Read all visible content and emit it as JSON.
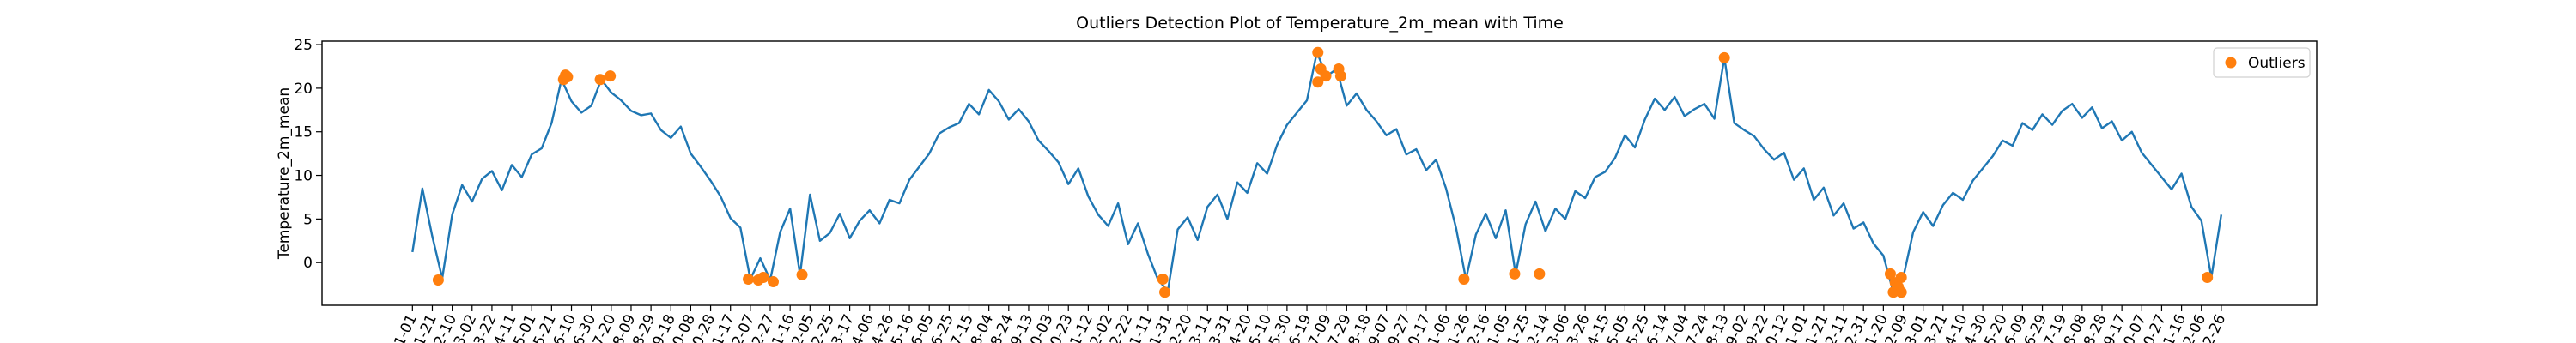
{
  "chart_data": {
    "type": "line",
    "title": "Outliers Detection Plot of Temperature_2m_mean with Time",
    "y_label": "Temperature_2m_mean",
    "xlim": [
      -91,
      1916
    ],
    "ylim": [
      -4.9,
      25.4
    ],
    "yticks": [
      0,
      5,
      10,
      15,
      20,
      25
    ],
    "legend": "upper right",
    "xticks": [
      {
        "value": 0,
        "label": "01-01"
      },
      {
        "value": 20,
        "label": "01-21"
      },
      {
        "value": 40,
        "label": "02-10"
      },
      {
        "value": 60,
        "label": "03-02"
      },
      {
        "value": 80,
        "label": "03-22"
      },
      {
        "value": 100,
        "label": "04-11"
      },
      {
        "value": 120,
        "label": "05-01"
      },
      {
        "value": 140,
        "label": "05-21"
      },
      {
        "value": 160,
        "label": "06-10"
      },
      {
        "value": 180,
        "label": "06-30"
      },
      {
        "value": 200,
        "label": "07-20"
      },
      {
        "value": 220,
        "label": "08-09"
      },
      {
        "value": 240,
        "label": "08-29"
      },
      {
        "value": 260,
        "label": "09-18"
      },
      {
        "value": 280,
        "label": "10-08"
      },
      {
        "value": 300,
        "label": "10-28"
      },
      {
        "value": 320,
        "label": "11-17"
      },
      {
        "value": 340,
        "label": "12-07"
      },
      {
        "value": 360,
        "label": "12-27"
      },
      {
        "value": 380,
        "label": "01-16"
      },
      {
        "value": 400,
        "label": "02-05"
      },
      {
        "value": 420,
        "label": "02-25"
      },
      {
        "value": 440,
        "label": "03-17"
      },
      {
        "value": 460,
        "label": "04-06"
      },
      {
        "value": 480,
        "label": "04-26"
      },
      {
        "value": 500,
        "label": "05-16"
      },
      {
        "value": 520,
        "label": "06-05"
      },
      {
        "value": 540,
        "label": "06-25"
      },
      {
        "value": 560,
        "label": "07-15"
      },
      {
        "value": 580,
        "label": "08-04"
      },
      {
        "value": 600,
        "label": "08-24"
      },
      {
        "value": 620,
        "label": "09-13"
      },
      {
        "value": 640,
        "label": "10-03"
      },
      {
        "value": 660,
        "label": "10-23"
      },
      {
        "value": 680,
        "label": "11-12"
      },
      {
        "value": 700,
        "label": "12-02"
      },
      {
        "value": 720,
        "label": "12-22"
      },
      {
        "value": 740,
        "label": "01-11"
      },
      {
        "value": 760,
        "label": "01-31"
      },
      {
        "value": 780,
        "label": "02-20"
      },
      {
        "value": 800,
        "label": "03-11"
      },
      {
        "value": 820,
        "label": "03-31"
      },
      {
        "value": 840,
        "label": "04-20"
      },
      {
        "value": 860,
        "label": "05-10"
      },
      {
        "value": 880,
        "label": "05-30"
      },
      {
        "value": 900,
        "label": "06-19"
      },
      {
        "value": 920,
        "label": "07-09"
      },
      {
        "value": 940,
        "label": "07-29"
      },
      {
        "value": 960,
        "label": "08-18"
      },
      {
        "value": 980,
        "label": "09-07"
      },
      {
        "value": 1000,
        "label": "09-27"
      },
      {
        "value": 1020,
        "label": "10-17"
      },
      {
        "value": 1040,
        "label": "11-06"
      },
      {
        "value": 1060,
        "label": "11-26"
      },
      {
        "value": 1080,
        "label": "12-16"
      },
      {
        "value": 1100,
        "label": "01-05"
      },
      {
        "value": 1120,
        "label": "01-25"
      },
      {
        "value": 1140,
        "label": "02-14"
      },
      {
        "value": 1160,
        "label": "03-06"
      },
      {
        "value": 1180,
        "label": "03-26"
      },
      {
        "value": 1200,
        "label": "04-15"
      },
      {
        "value": 1220,
        "label": "05-05"
      },
      {
        "value": 1240,
        "label": "05-25"
      },
      {
        "value": 1260,
        "label": "06-14"
      },
      {
        "value": 1280,
        "label": "07-04"
      },
      {
        "value": 1300,
        "label": "07-24"
      },
      {
        "value": 1320,
        "label": "08-13"
      },
      {
        "value": 1340,
        "label": "09-02"
      },
      {
        "value": 1360,
        "label": "09-22"
      },
      {
        "value": 1380,
        "label": "10-12"
      },
      {
        "value": 1400,
        "label": "11-01"
      },
      {
        "value": 1420,
        "label": "11-21"
      },
      {
        "value": 1440,
        "label": "12-11"
      },
      {
        "value": 1460,
        "label": "12-31"
      },
      {
        "value": 1480,
        "label": "01-20"
      },
      {
        "value": 1500,
        "label": "02-09"
      },
      {
        "value": 1520,
        "label": "03-01"
      },
      {
        "value": 1540,
        "label": "03-21"
      },
      {
        "value": 1560,
        "label": "04-10"
      },
      {
        "value": 1580,
        "label": "04-30"
      },
      {
        "value": 1600,
        "label": "05-20"
      },
      {
        "value": 1620,
        "label": "06-09"
      },
      {
        "value": 1640,
        "label": "06-29"
      },
      {
        "value": 1660,
        "label": "07-19"
      },
      {
        "value": 1680,
        "label": "08-08"
      },
      {
        "value": 1700,
        "label": "08-28"
      },
      {
        "value": 1720,
        "label": "09-17"
      },
      {
        "value": 1740,
        "label": "10-07"
      },
      {
        "value": 1760,
        "label": "10-27"
      },
      {
        "value": 1780,
        "label": "11-16"
      },
      {
        "value": 1800,
        "label": "12-06"
      },
      {
        "value": 1820,
        "label": "12-26"
      }
    ],
    "series": [
      {
        "type": "line",
        "color": "#1f77b4",
        "x": [
          0,
          10,
          20,
          30,
          40,
          50,
          60,
          70,
          80,
          90,
          100,
          110,
          120,
          130,
          140,
          150,
          160,
          170,
          180,
          190,
          200,
          210,
          220,
          230,
          240,
          250,
          260,
          270,
          280,
          290,
          300,
          310,
          320,
          330,
          340,
          350,
          360,
          370,
          380,
          390,
          400,
          410,
          420,
          430,
          440,
          450,
          460,
          470,
          480,
          490,
          500,
          510,
          520,
          530,
          540,
          550,
          560,
          570,
          580,
          590,
          600,
          610,
          620,
          630,
          640,
          650,
          660,
          670,
          680,
          690,
          700,
          710,
          720,
          730,
          740,
          750,
          760,
          770,
          780,
          790,
          800,
          810,
          820,
          830,
          840,
          850,
          860,
          870,
          880,
          890,
          900,
          910,
          920,
          930,
          940,
          950,
          960,
          970,
          980,
          990,
          1000,
          1010,
          1020,
          1030,
          1040,
          1050,
          1060,
          1070,
          1080,
          1090,
          1100,
          1110,
          1120,
          1130,
          1140,
          1150,
          1160,
          1170,
          1180,
          1190,
          1200,
          1210,
          1220,
          1230,
          1240,
          1250,
          1260,
          1270,
          1280,
          1290,
          1300,
          1310,
          1320,
          1330,
          1340,
          1350,
          1360,
          1370,
          1380,
          1390,
          1400,
          1410,
          1420,
          1430,
          1440,
          1450,
          1460,
          1470,
          1480,
          1490,
          1500,
          1510,
          1520,
          1530,
          1540,
          1550,
          1560,
          1570,
          1580,
          1590,
          1600,
          1610,
          1620,
          1630,
          1640,
          1650,
          1660,
          1670,
          1680,
          1690,
          1700,
          1710,
          1720,
          1730,
          1740,
          1750,
          1760,
          1770,
          1780,
          1790,
          1800,
          1810,
          1820
        ],
        "values": [
          1.2,
          8.5,
          3.0,
          -1.8,
          5.5,
          8.9,
          7.0,
          9.6,
          10.5,
          8.3,
          11.2,
          9.8,
          12.4,
          13.1,
          16.0,
          21.0,
          18.5,
          17.2,
          18.0,
          21.0,
          19.5,
          18.6,
          17.4,
          16.9,
          17.1,
          15.2,
          14.3,
          15.6,
          12.5,
          11.0,
          9.4,
          7.6,
          5.1,
          4.0,
          -1.9,
          0.5,
          -2.0,
          3.5,
          6.2,
          -1.4,
          7.8,
          2.5,
          3.4,
          5.6,
          2.8,
          4.8,
          6.0,
          4.5,
          7.2,
          6.8,
          9.5,
          11.0,
          12.5,
          14.8,
          15.5,
          16.0,
          18.2,
          17.0,
          19.8,
          18.5,
          16.4,
          17.6,
          16.2,
          14.0,
          12.8,
          11.5,
          9.0,
          10.8,
          7.6,
          5.5,
          4.2,
          6.8,
          2.1,
          4.5,
          1.0,
          -1.9,
          -3.3,
          3.8,
          5.2,
          2.6,
          6.4,
          7.8,
          5.0,
          9.2,
          8.0,
          11.4,
          10.2,
          13.5,
          15.8,
          17.2,
          18.6,
          24.1,
          21.4,
          22.2,
          18.0,
          19.4,
          17.5,
          16.2,
          14.6,
          15.3,
          12.4,
          13.0,
          10.6,
          11.8,
          8.5,
          4.0,
          -1.9,
          3.2,
          5.6,
          2.8,
          6.0,
          -1.3,
          4.4,
          7.0,
          3.6,
          6.2,
          5.0,
          8.2,
          7.4,
          9.8,
          10.4,
          12.0,
          14.6,
          13.2,
          16.4,
          18.8,
          17.5,
          19.0,
          16.8,
          17.6,
          18.2,
          16.5,
          23.5,
          16.0,
          15.2,
          14.5,
          13.0,
          11.8,
          12.6,
          9.5,
          10.8,
          7.2,
          8.6,
          5.4,
          6.8,
          3.9,
          4.6,
          2.2,
          0.8,
          -3.4,
          -1.7,
          3.5,
          5.8,
          4.2,
          6.6,
          8.0,
          7.2,
          9.4,
          10.8,
          12.2,
          14.0,
          13.4,
          16.0,
          15.2,
          17.0,
          15.8,
          17.4,
          18.2,
          16.6,
          17.8,
          15.4,
          16.2,
          14.0,
          15.0,
          12.6,
          11.2,
          9.8,
          8.4,
          10.2,
          6.4,
          4.8,
          -1.7,
          5.5
        ]
      },
      {
        "type": "scatter",
        "name": "Outliers",
        "color": "#ff7f0e",
        "x": [
          26,
          152,
          154,
          156,
          189,
          199,
          338,
          348,
          353,
          363,
          392,
          755,
          757,
          911,
          911,
          914,
          919,
          932,
          934,
          1058,
          1109,
          1134,
          1320,
          1487,
          1490,
          1492,
          1495,
          1498,
          1498,
          1806
        ],
        "values": [
          -2.0,
          21.0,
          21.5,
          21.3,
          21.0,
          21.4,
          -1.9,
          -2.0,
          -1.7,
          -2.2,
          -1.4,
          -1.9,
          -3.4,
          24.1,
          20.7,
          22.2,
          21.4,
          22.2,
          21.4,
          -1.9,
          -1.3,
          -1.3,
          23.5,
          -1.3,
          -3.4,
          -2.3,
          -2.8,
          -1.7,
          -3.4,
          -1.7
        ]
      }
    ]
  }
}
